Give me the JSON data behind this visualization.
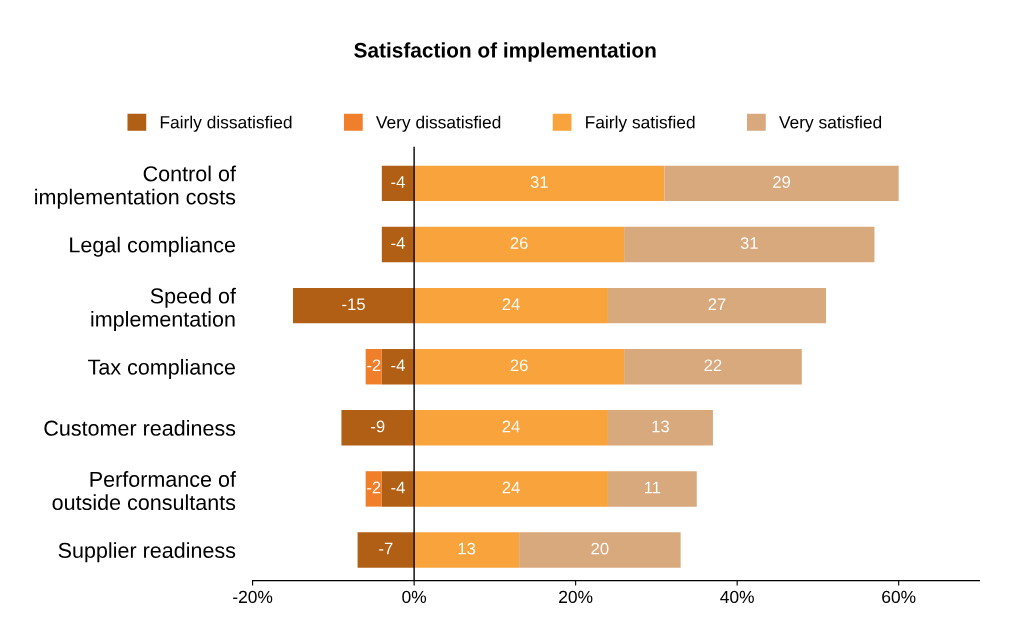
{
  "chart_data": {
    "type": "bar",
    "orientation": "horizontal",
    "stacked": true,
    "title": "Satisfaction of implementation",
    "categories": [
      "Control of\nimplementation costs",
      "Legal compliance",
      "Speed of\nimplementation",
      "Tax compliance",
      "Customer readiness",
      "Performance of\noutside consultants",
      "Supplier readiness"
    ],
    "series": [
      {
        "name": "Fairly dissatisfied",
        "color": "#b05f14",
        "values": [
          -4,
          -4,
          -15,
          -4,
          -9,
          -4,
          -7
        ]
      },
      {
        "name": "Very dissatisfied",
        "color": "#f07f2c",
        "values": [
          null,
          null,
          null,
          -2,
          null,
          -2,
          null
        ]
      },
      {
        "name": "Fairly satisfied",
        "color": "#f8a33c",
        "values": [
          31,
          26,
          24,
          26,
          24,
          24,
          13
        ]
      },
      {
        "name": "Very satisfied",
        "color": "#d9a97e",
        "values": [
          29,
          31,
          27,
          22,
          13,
          11,
          20
        ]
      }
    ],
    "xlim": [
      -20,
      70
    ],
    "xticks": [
      {
        "value": -20,
        "label": "-20%"
      },
      {
        "value": 0,
        "label": "0%"
      },
      {
        "value": 20,
        "label": "20%"
      },
      {
        "value": 40,
        "label": "40%"
      },
      {
        "value": 60,
        "label": "60%"
      }
    ],
    "ref_lines": [
      {
        "axis": "x",
        "value": 0,
        "color": "#000000"
      }
    ],
    "data_labels": true,
    "legend": "top",
    "grid": false
  }
}
